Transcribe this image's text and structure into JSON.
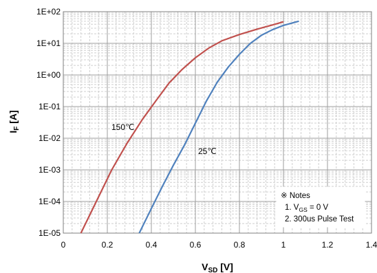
{
  "chart_data": {
    "type": "line",
    "xlabel_main": "V",
    "xlabel_sub": "SD",
    "xlabel_unit": "[V]",
    "ylabel_main": "I",
    "ylabel_sub": "F",
    "ylabel_unit": "[A]",
    "xlim": [
      0,
      1.4
    ],
    "ylim": [
      1e-05,
      100
    ],
    "yscale": "log",
    "grid": true,
    "x_ticks": [
      "0",
      "0.2",
      "0.4",
      "0.6",
      "0.8",
      "1",
      "1.2",
      "1.4"
    ],
    "y_ticks": [
      "1E+02",
      "1E+01",
      "1E+00",
      "1E-01",
      "1E-02",
      "1E-03",
      "1E-04",
      "1E-05"
    ],
    "series": [
      {
        "name": "150℃",
        "color": "#c0504d",
        "x": [
          0.08,
          0.15,
          0.22,
          0.29,
          0.36,
          0.42,
          0.48,
          0.54,
          0.6,
          0.66,
          0.72,
          0.8,
          0.88,
          0.95,
          1.0
        ],
        "y": [
          1e-05,
          0.0001,
          0.001,
          0.007,
          0.04,
          0.15,
          0.55,
          1.5,
          3.5,
          7,
          12,
          19,
          28,
          38,
          48
        ]
      },
      {
        "name": "25℃",
        "color": "#4f81bd",
        "x": [
          0.345,
          0.4,
          0.45,
          0.5,
          0.55,
          0.6,
          0.65,
          0.7,
          0.75,
          0.8,
          0.85,
          0.9,
          0.95,
          1.0,
          1.07
        ],
        "y": [
          1e-05,
          6e-05,
          0.0003,
          0.0014,
          0.006,
          0.03,
          0.15,
          0.6,
          1.8,
          4.5,
          10,
          18,
          27,
          37,
          50
        ]
      }
    ],
    "annotations": {
      "notes_title": "※ Notes",
      "note1_prefix": "1. V",
      "note1_sub": "GS",
      "note1_suffix": " = 0 V",
      "note2": "2. 300us Pulse Test"
    },
    "colors": {
      "grid_major": "#9e9e9e",
      "grid_minor": "#cfcfcf",
      "plot_border": "#7f7f7f"
    }
  }
}
